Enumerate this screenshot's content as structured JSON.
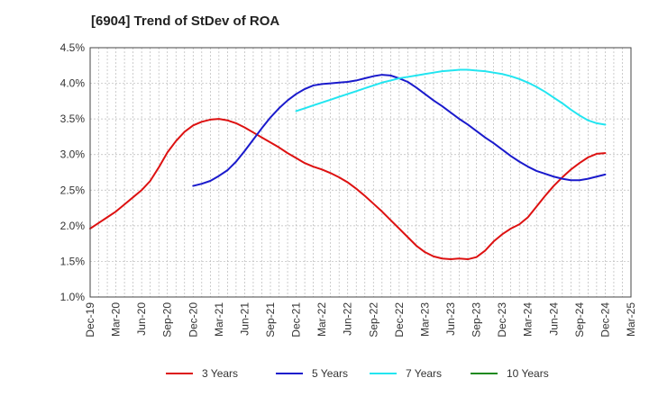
{
  "chart_data": {
    "type": "line",
    "title": "[6904]  Trend of StDev of ROA",
    "xlabel": "",
    "ylabel": "",
    "x_ticks": [
      "Dec-19",
      "Mar-20",
      "Jun-20",
      "Sep-20",
      "Dec-20",
      "Mar-21",
      "Jun-21",
      "Sep-21",
      "Dec-21",
      "Mar-22",
      "Jun-22",
      "Sep-22",
      "Dec-22",
      "Mar-23",
      "Jun-23",
      "Sep-23",
      "Dec-23",
      "Mar-24",
      "Jun-24",
      "Sep-24",
      "Dec-24",
      "Mar-25"
    ],
    "y_ticks": [
      "1.0%",
      "1.5%",
      "2.0%",
      "2.5%",
      "3.0%",
      "3.5%",
      "4.0%",
      "4.5%"
    ],
    "ylim": [
      1.0,
      4.5
    ],
    "y_unit": "%",
    "grid": true,
    "legend_position": "bottom",
    "series": [
      {
        "name": "3 Years",
        "color": "#dd1111",
        "x": [
          "Dec-19",
          "Jan-20",
          "Feb-20",
          "Mar-20",
          "Apr-20",
          "May-20",
          "Jun-20",
          "Jul-20",
          "Aug-20",
          "Sep-20",
          "Oct-20",
          "Nov-20",
          "Dec-20",
          "Jan-21",
          "Feb-21",
          "Mar-21",
          "Apr-21",
          "May-21",
          "Jun-21",
          "Jul-21",
          "Aug-21",
          "Sep-21",
          "Oct-21",
          "Nov-21",
          "Dec-21",
          "Jan-22",
          "Feb-22",
          "Mar-22",
          "Apr-22",
          "May-22",
          "Jun-22",
          "Jul-22",
          "Aug-22",
          "Sep-22",
          "Oct-22",
          "Nov-22",
          "Dec-22",
          "Jan-23",
          "Feb-23",
          "Mar-23",
          "Apr-23",
          "May-23",
          "Jun-23",
          "Jul-23",
          "Aug-23",
          "Sep-23",
          "Oct-23",
          "Nov-23",
          "Dec-23",
          "Jan-24",
          "Feb-24",
          "Mar-24",
          "Apr-24",
          "May-24",
          "Jun-24",
          "Jul-24",
          "Aug-24",
          "Sep-24",
          "Oct-24",
          "Nov-24",
          "Dec-24"
        ],
        "values": [
          1.96,
          2.04,
          2.12,
          2.2,
          2.3,
          2.4,
          2.5,
          2.63,
          2.82,
          3.03,
          3.19,
          3.32,
          3.41,
          3.46,
          3.49,
          3.5,
          3.48,
          3.44,
          3.38,
          3.31,
          3.24,
          3.17,
          3.1,
          3.02,
          2.95,
          2.88,
          2.83,
          2.79,
          2.74,
          2.68,
          2.61,
          2.52,
          2.42,
          2.31,
          2.2,
          2.08,
          1.96,
          1.84,
          1.72,
          1.63,
          1.57,
          1.54,
          1.53,
          1.54,
          1.53,
          1.56,
          1.65,
          1.78,
          1.88,
          1.96,
          2.02,
          2.12,
          2.27,
          2.42,
          2.56,
          2.68,
          2.79,
          2.88,
          2.96,
          3.01,
          3.02
        ]
      },
      {
        "name": "5 Years",
        "color": "#1a1acc",
        "x": [
          "Dec-20",
          "Jan-21",
          "Feb-21",
          "Mar-21",
          "Apr-21",
          "May-21",
          "Jun-21",
          "Jul-21",
          "Aug-21",
          "Sep-21",
          "Oct-21",
          "Nov-21",
          "Dec-21",
          "Jan-22",
          "Feb-22",
          "Mar-22",
          "Apr-22",
          "May-22",
          "Jun-22",
          "Jul-22",
          "Aug-22",
          "Sep-22",
          "Oct-22",
          "Nov-22",
          "Dec-22",
          "Jan-23",
          "Feb-23",
          "Mar-23",
          "Apr-23",
          "May-23",
          "Jun-23",
          "Jul-23",
          "Aug-23",
          "Sep-23",
          "Oct-23",
          "Nov-23",
          "Dec-23",
          "Jan-24",
          "Feb-24",
          "Mar-24",
          "Apr-24",
          "May-24",
          "Jun-24",
          "Jul-24",
          "Aug-24",
          "Sep-24",
          "Oct-24",
          "Nov-24",
          "Dec-24"
        ],
        "values": [
          2.56,
          2.59,
          2.63,
          2.7,
          2.78,
          2.9,
          3.05,
          3.21,
          3.37,
          3.52,
          3.65,
          3.76,
          3.85,
          3.92,
          3.97,
          3.99,
          4.0,
          4.01,
          4.02,
          4.04,
          4.07,
          4.1,
          4.12,
          4.11,
          4.07,
          4.02,
          3.94,
          3.85,
          3.76,
          3.68,
          3.59,
          3.5,
          3.42,
          3.33,
          3.24,
          3.16,
          3.07,
          2.98,
          2.9,
          2.83,
          2.77,
          2.73,
          2.69,
          2.66,
          2.64,
          2.64,
          2.66,
          2.69,
          2.72
        ]
      },
      {
        "name": "7 Years",
        "color": "#22e5f0",
        "x": [
          "Dec-21",
          "Jan-22",
          "Feb-22",
          "Mar-22",
          "Apr-22",
          "May-22",
          "Jun-22",
          "Jul-22",
          "Aug-22",
          "Sep-22",
          "Oct-22",
          "Nov-22",
          "Dec-22",
          "Jan-23",
          "Feb-23",
          "Mar-23",
          "Apr-23",
          "May-23",
          "Jun-23",
          "Jul-23",
          "Aug-23",
          "Sep-23",
          "Oct-23",
          "Nov-23",
          "Dec-23",
          "Jan-24",
          "Feb-24",
          "Mar-24",
          "Apr-24",
          "May-24",
          "Jun-24",
          "Jul-24",
          "Aug-24",
          "Sep-24",
          "Oct-24",
          "Nov-24",
          "Dec-24"
        ],
        "values": [
          3.61,
          3.65,
          3.69,
          3.73,
          3.77,
          3.81,
          3.85,
          3.89,
          3.93,
          3.97,
          4.01,
          4.04,
          4.07,
          4.09,
          4.11,
          4.13,
          4.15,
          4.17,
          4.18,
          4.19,
          4.19,
          4.18,
          4.17,
          4.15,
          4.13,
          4.1,
          4.06,
          4.01,
          3.95,
          3.88,
          3.8,
          3.72,
          3.63,
          3.55,
          3.48,
          3.44,
          3.42
        ]
      },
      {
        "name": "10 Years",
        "color": "#1f8a1f",
        "x": [],
        "values": []
      }
    ]
  }
}
